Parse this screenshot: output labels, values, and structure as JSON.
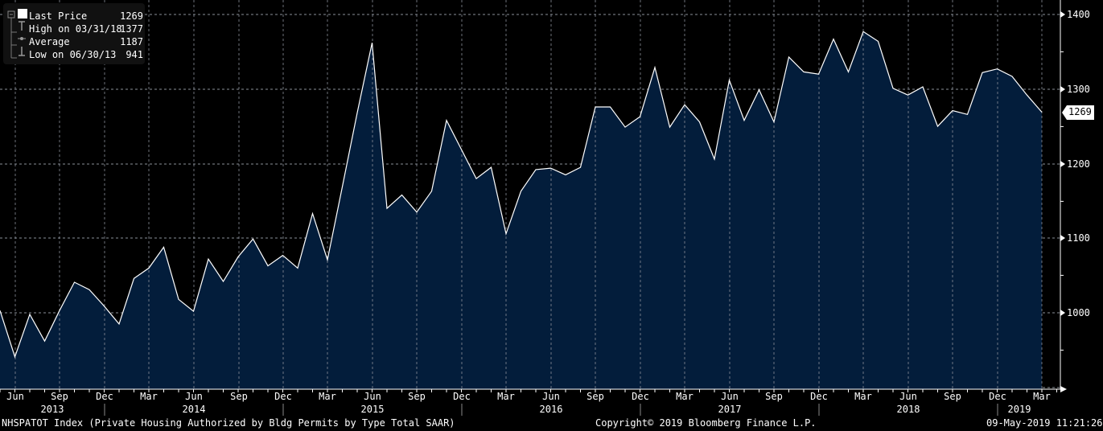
{
  "legend": {
    "items": [
      {
        "label": "Last Price",
        "value": "1269",
        "icon": "square-icon"
      },
      {
        "label": "High on 03/31/18",
        "value": "1377",
        "icon": "high-marker-icon"
      },
      {
        "label": "Average",
        "value": "1187",
        "icon": "average-marker-icon"
      },
      {
        "label": "Low on 06/30/13",
        "value": "941",
        "icon": "low-marker-icon"
      }
    ]
  },
  "y_axis": {
    "ticks": [
      {
        "label": "1400",
        "y": 18
      },
      {
        "label": "1300",
        "y": 111
      },
      {
        "label": "1200",
        "y": 204
      },
      {
        "label": "1100",
        "y": 296
      },
      {
        "label": "1000",
        "y": 389
      }
    ],
    "last_value_tag": "1269"
  },
  "x_axis": {
    "months": [
      {
        "label": "Jun",
        "x": 19
      },
      {
        "label": "Sep",
        "x": 74
      },
      {
        "label": "Dec",
        "x": 130
      },
      {
        "label": "Mar",
        "x": 185
      },
      {
        "label": "Jun",
        "x": 241
      },
      {
        "label": "Sep",
        "x": 297
      },
      {
        "label": "Dec",
        "x": 352
      },
      {
        "label": "Mar",
        "x": 407
      },
      {
        "label": "Jun",
        "x": 463
      },
      {
        "label": "Sep",
        "x": 518
      },
      {
        "label": "Dec",
        "x": 574
      },
      {
        "label": "Mar",
        "x": 629
      },
      {
        "label": "Jun",
        "x": 685
      },
      {
        "label": "Sep",
        "x": 740
      },
      {
        "label": "Dec",
        "x": 796
      },
      {
        "label": "Mar",
        "x": 851
      },
      {
        "label": "Jun",
        "x": 907
      },
      {
        "label": "Sep",
        "x": 962
      },
      {
        "label": "Dec",
        "x": 1018
      },
      {
        "label": "Mar",
        "x": 1073
      },
      {
        "label": "Jun",
        "x": 1129
      },
      {
        "label": "Sep",
        "x": 1184
      },
      {
        "label": "Dec",
        "x": 1240
      },
      {
        "label": "Mar",
        "x": 1295
      }
    ],
    "years": [
      {
        "label": "2013",
        "x": 65
      },
      {
        "label": "2014",
        "x": 241
      },
      {
        "label": "2015",
        "x": 463
      },
      {
        "label": "2016",
        "x": 685
      },
      {
        "label": "2017",
        "x": 907
      },
      {
        "label": "2018",
        "x": 1129
      },
      {
        "label": "2019",
        "x": 1267
      }
    ],
    "year_dividers": [
      130,
      352,
      574,
      796,
      1018,
      1240
    ]
  },
  "footer": {
    "ticker": "NHSPATOT Index (Private Housing Authorized by Bldg Permits by Type Total SAAR)",
    "copyright": "Copyright© 2019 Bloomberg Finance L.P.",
    "timestamp": "09-May-2019 11:21:26"
  },
  "colors": {
    "background": "#000000",
    "area_fill": "#031d3b",
    "line": "#ffffff",
    "grid": "#8a8f99"
  },
  "chart_data": {
    "type": "area",
    "title": "NHSPATOT Index (Private Housing Authorized by Bldg Permits by Type Total SAAR)",
    "xlabel": "",
    "ylabel": "",
    "ylim": [
      900,
      1420
    ],
    "grid": true,
    "legend_position": "top-left",
    "x": [
      "May-13",
      "Jun-13",
      "Jul-13",
      "Aug-13",
      "Sep-13",
      "Oct-13",
      "Nov-13",
      "Dec-13",
      "Jan-14",
      "Feb-14",
      "Mar-14",
      "Apr-14",
      "May-14",
      "Jun-14",
      "Jul-14",
      "Aug-14",
      "Sep-14",
      "Oct-14",
      "Nov-14",
      "Dec-14",
      "Jan-15",
      "Feb-15",
      "Mar-15",
      "Apr-15",
      "May-15",
      "Jun-15",
      "Jul-15",
      "Aug-15",
      "Sep-15",
      "Oct-15",
      "Nov-15",
      "Dec-15",
      "Jan-16",
      "Feb-16",
      "Mar-16",
      "Apr-16",
      "May-16",
      "Jun-16",
      "Jul-16",
      "Aug-16",
      "Sep-16",
      "Oct-16",
      "Nov-16",
      "Dec-16",
      "Jan-17",
      "Feb-17",
      "Mar-17",
      "Apr-17",
      "May-17",
      "Jun-17",
      "Jul-17",
      "Aug-17",
      "Sep-17",
      "Oct-17",
      "Nov-17",
      "Dec-17",
      "Jan-18",
      "Feb-18",
      "Mar-18",
      "Apr-18",
      "May-18",
      "Jun-18",
      "Jul-18",
      "Aug-18",
      "Sep-18",
      "Oct-18",
      "Nov-18",
      "Dec-18",
      "Jan-19",
      "Feb-19",
      "Mar-19"
    ],
    "series": [
      {
        "name": "Last Price",
        "values": [
          1003,
          941,
          998,
          962,
          1003,
          1041,
          1031,
          1009,
          985,
          1046,
          1060,
          1088,
          1018,
          1002,
          1072,
          1042,
          1075,
          1099,
          1063,
          1077,
          1060,
          1133,
          1071,
          1169,
          1268,
          1362,
          1140,
          1158,
          1135,
          1163,
          1258,
          1219,
          1180,
          1195,
          1106,
          1163,
          1192,
          1194,
          1185,
          1195,
          1276,
          1276,
          1249,
          1263,
          1329,
          1249,
          1279,
          1256,
          1206,
          1312,
          1258,
          1299,
          1256,
          1343,
          1323,
          1320,
          1367,
          1323,
          1377,
          1364,
          1301,
          1292,
          1303,
          1250,
          1271,
          1266,
          1322,
          1327,
          1317,
          1292,
          1269
        ]
      }
    ],
    "annotations": [
      {
        "label": "High on 03/31/18",
        "value": 1377
      },
      {
        "label": "Average",
        "value": 1187
      },
      {
        "label": "Low on 06/30/13",
        "value": 941
      },
      {
        "label": "Last Price",
        "value": 1269
      }
    ]
  }
}
